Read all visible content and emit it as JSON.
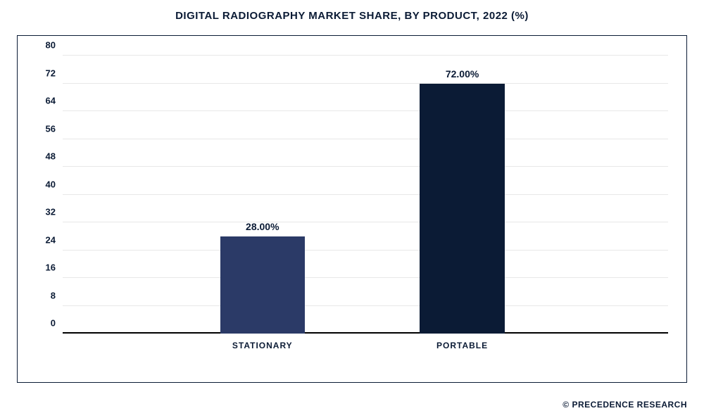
{
  "title": "DIGITAL RADIOGRAPHY MARKET SHARE, BY PRODUCT, 2022 (%)",
  "chart": {
    "type": "bar",
    "ylim": [
      0,
      80
    ],
    "ytick_step": 8,
    "yticks": [
      "0",
      "8",
      "16",
      "24",
      "32",
      "40",
      "48",
      "56",
      "64",
      "72",
      "80"
    ],
    "grid_color": "#e8e8e8",
    "baseline_color": "#000000",
    "background_color": "#ffffff",
    "border_color": "#0b1b35",
    "bars": [
      {
        "category": "STATIONARY",
        "value": 28.0,
        "label": "28.00%",
        "color": "#2b3a67",
        "x_center_pct": 33
      },
      {
        "category": "PORTABLE",
        "value": 72.0,
        "label": "72.00%",
        "color": "#0b1b35",
        "x_center_pct": 66
      }
    ],
    "bar_width_pct": 14,
    "title_fontsize": 15,
    "tick_fontsize": 13,
    "label_fontsize": 14,
    "category_fontsize": 12
  },
  "footer": "© PRECEDENCE RESEARCH"
}
